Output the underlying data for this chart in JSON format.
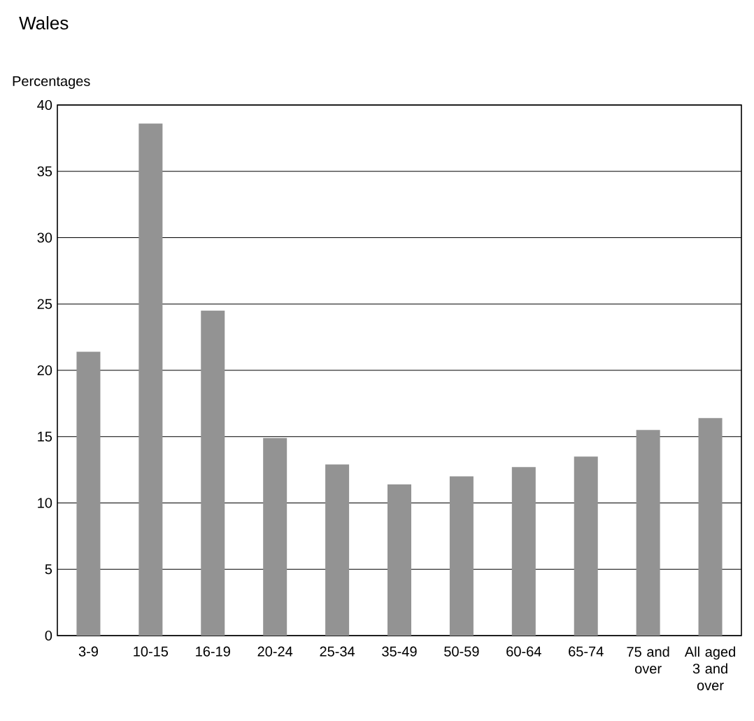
{
  "chart_data": {
    "type": "bar",
    "title": "Wales",
    "ylabel": "Percentages",
    "categories": [
      "3-9",
      "10-15",
      "16-19",
      "20-24",
      "25-34",
      "35-49",
      "50-59",
      "60-64",
      "65-74",
      "75 and over",
      "All aged 3 and over"
    ],
    "values": [
      21.4,
      38.6,
      24.5,
      14.9,
      12.9,
      11.4,
      12.0,
      12.7,
      13.5,
      15.5,
      16.4
    ],
    "color": "#939393",
    "ylim": [
      0,
      40
    ],
    "yticks": [
      0,
      5,
      10,
      15,
      20,
      25,
      30,
      35,
      40
    ],
    "grid": "y"
  }
}
